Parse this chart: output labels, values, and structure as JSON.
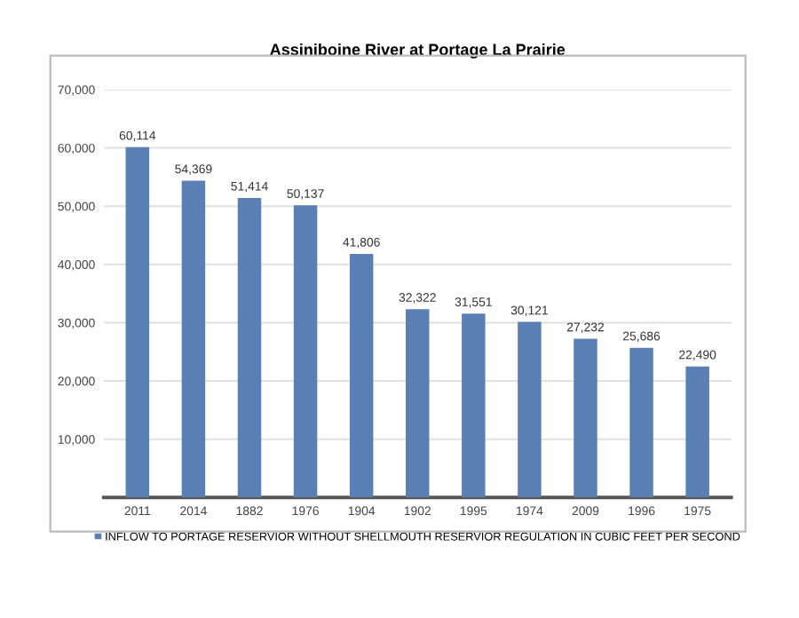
{
  "chart_data": {
    "type": "bar",
    "title": "Assiniboine River at Portage La Prairie",
    "categories": [
      "2011",
      "2014",
      "1882",
      "1976",
      "1904",
      "1902",
      "1995",
      "1974",
      "2009",
      "1996",
      "1975"
    ],
    "series": [
      {
        "name": "INFLOW TO PORTAGE RESERVIOR WITHOUT SHELLMOUTH RESERVIOR REGULATION IN CUBIC FEET PER SECOND",
        "color": "#5a7fb5",
        "values": [
          60114,
          54369,
          51414,
          50137,
          41806,
          32322,
          31551,
          30121,
          27232,
          25686,
          22490
        ],
        "value_labels": [
          "60,114",
          "54,369",
          "51,414",
          "50,137",
          "41,806",
          "32,322",
          "31,551",
          "30,121",
          "27,232",
          "25,686",
          "22,490"
        ]
      }
    ],
    "ylim": [
      0,
      70000
    ],
    "yticks": [
      {
        "value": 0,
        "label": null
      },
      {
        "value": 10000,
        "label": "10,000"
      },
      {
        "value": 20000,
        "label": "20,000"
      },
      {
        "value": 30000,
        "label": "30,000"
      },
      {
        "value": 40000,
        "label": "40,000"
      },
      {
        "value": 50000,
        "label": "50,000"
      },
      {
        "value": 60000,
        "label": "60,000"
      },
      {
        "value": 70000,
        "label": "70,000"
      }
    ],
    "grid": "y",
    "legend": "bottom"
  }
}
